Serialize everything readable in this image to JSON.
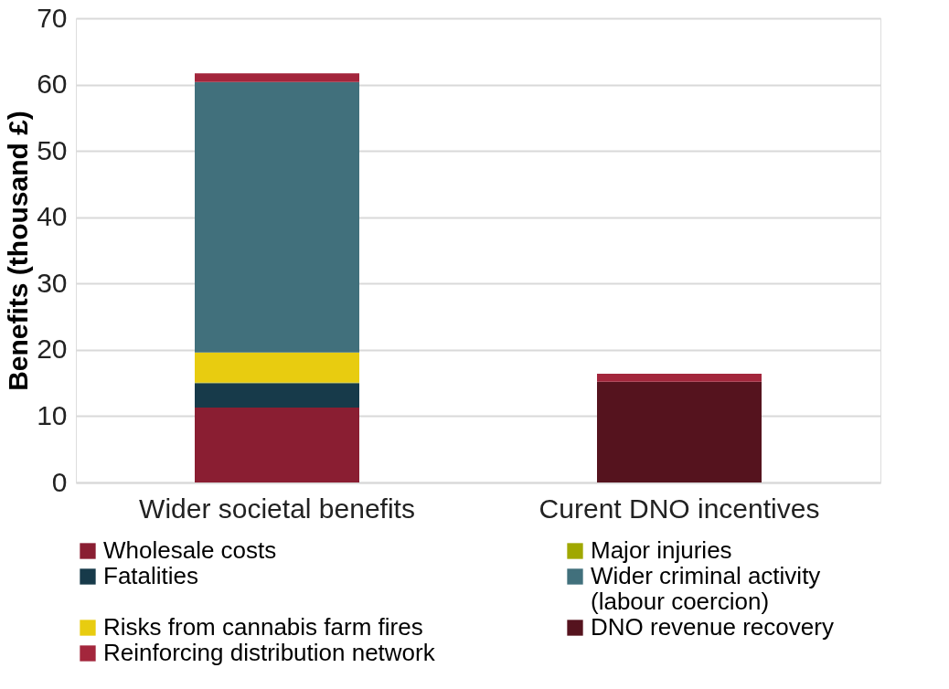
{
  "chart_data": {
    "type": "bar",
    "stacked": true,
    "ylabel": "Benefits (thousand £)",
    "categories": [
      "Wider societal benefits",
      "Curent DNO incentives"
    ],
    "series": [
      {
        "name": "Wholesale costs",
        "color": "#8a1e32",
        "values": [
          11.3,
          null
        ]
      },
      {
        "name": "Fatalities",
        "color": "#173a4a",
        "values": [
          3.7,
          null
        ]
      },
      {
        "name": "Major injuries",
        "color": "#a0a800",
        "values": [
          0.1,
          null
        ]
      },
      {
        "name": "Risks from cannabis farm fires",
        "color": "#e8cc10",
        "values": [
          4.5,
          null
        ]
      },
      {
        "name": "Wider criminal activity\n(labour coercion)",
        "color": "#41707c",
        "values": [
          40.8,
          null
        ]
      },
      {
        "name": "DNO revenue recovery",
        "color": "#55131e",
        "values": [
          null,
          15.2
        ]
      },
      {
        "name": "Reinforcing distribution network",
        "color": "#a3263c",
        "values": [
          1.3,
          1.2
        ]
      }
    ],
    "ylim": [
      0,
      70
    ],
    "yticks": [
      0,
      10,
      20,
      30,
      40,
      50,
      60,
      70
    ],
    "grid": "y",
    "legend": "bottom"
  }
}
